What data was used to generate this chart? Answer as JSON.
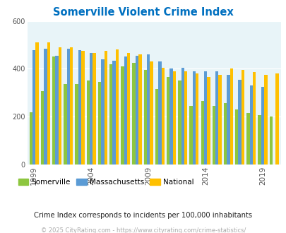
{
  "title": "Somerville Violent Crime Index",
  "years": [
    1999,
    2000,
    2001,
    2002,
    2003,
    2004,
    2005,
    2006,
    2007,
    2008,
    2009,
    2010,
    2011,
    2012,
    2013,
    2014,
    2015,
    2016,
    2017,
    2018,
    2019,
    2020
  ],
  "somerville": [
    218,
    305,
    450,
    335,
    335,
    350,
    345,
    420,
    410,
    425,
    395,
    315,
    365,
    350,
    245,
    265,
    245,
    255,
    230,
    215,
    205,
    200
  ],
  "massachusetts": [
    478,
    483,
    455,
    483,
    478,
    465,
    440,
    435,
    450,
    455,
    460,
    430,
    400,
    405,
    390,
    390,
    390,
    375,
    355,
    330,
    325,
    0
  ],
  "national": [
    510,
    510,
    490,
    490,
    475,
    465,
    475,
    480,
    465,
    460,
    430,
    405,
    390,
    390,
    380,
    365,
    375,
    400,
    395,
    385,
    375,
    380
  ],
  "somerville_color": "#8dc63f",
  "massachusetts_color": "#5b9bd5",
  "national_color": "#ffc000",
  "bg_color": "#ddeef3",
  "plot_bg": "#e8f4f8",
  "ylim": [
    0,
    600
  ],
  "yticks": [
    0,
    200,
    400,
    600
  ],
  "xlabel_years": [
    1999,
    2004,
    2009,
    2014,
    2019
  ],
  "subtitle": "Crime Index corresponds to incidents per 100,000 inhabitants",
  "footer": "© 2025 CityRating.com - https://www.cityrating.com/crime-statistics/",
  "legend_labels": [
    "Somerville",
    "Massachusetts",
    "National"
  ],
  "title_color": "#0070c0",
  "tick_color": "#555555",
  "subtitle_color": "#222222",
  "footer_color": "#aaaaaa"
}
